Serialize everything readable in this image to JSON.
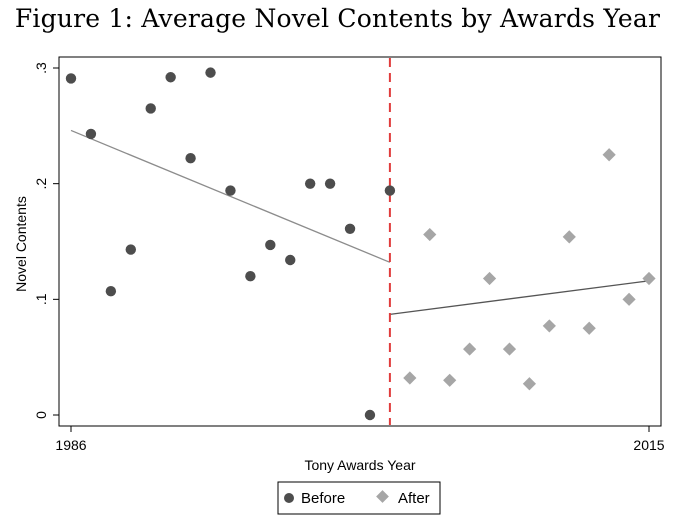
{
  "figure_title": "Figure 1: Average Novel Contents by Awards Year",
  "chart_data": {
    "type": "scatter",
    "title": "Figure 1: Average Novel Contents by Awards Year",
    "xlabel": "Tony Awards Year",
    "ylabel": "Novel Contents",
    "xlim": [
      1986,
      2015
    ],
    "ylim": [
      0,
      0.3
    ],
    "x_ticks": [
      1986,
      2015
    ],
    "x_tick_labels": [
      "1986",
      "2015"
    ],
    "y_ticks": [
      0,
      0.1,
      0.2,
      0.3
    ],
    "y_tick_labels": [
      "0",
      ".1",
      ".2",
      ".3"
    ],
    "cutoff_x": 2002,
    "grid": false,
    "legend_position": "bottom",
    "series": [
      {
        "name": "Before",
        "marker": "circle",
        "color": "#4d4d4d",
        "points": [
          [
            1986,
            0.291
          ],
          [
            1987,
            0.243
          ],
          [
            1988,
            0.107
          ],
          [
            1989,
            0.143
          ],
          [
            1990,
            0.265
          ],
          [
            1991,
            0.292
          ],
          [
            1992,
            0.222
          ],
          [
            1993,
            0.296
          ],
          [
            1994,
            0.194
          ],
          [
            1995,
            0.12
          ],
          [
            1996,
            0.147
          ],
          [
            1997,
            0.134
          ],
          [
            1998,
            0.2
          ],
          [
            1999,
            0.2
          ],
          [
            2000,
            0.161
          ],
          [
            2001,
            0.0
          ],
          [
            2002,
            0.194
          ]
        ],
        "fit_line": [
          [
            1986,
            0.246
          ],
          [
            2002,
            0.132
          ]
        ]
      },
      {
        "name": "After",
        "marker": "diamond",
        "color": "#a6a6a6",
        "points": [
          [
            2003,
            0.032
          ],
          [
            2004,
            0.156
          ],
          [
            2005,
            0.03
          ],
          [
            2006,
            0.057
          ],
          [
            2007,
            0.118
          ],
          [
            2008,
            0.057
          ],
          [
            2009,
            0.027
          ],
          [
            2010,
            0.077
          ],
          [
            2011,
            0.154
          ],
          [
            2012,
            0.075
          ],
          [
            2013,
            0.225
          ],
          [
            2014,
            0.1
          ],
          [
            2015,
            0.118
          ]
        ],
        "fit_line": [
          [
            2002,
            0.087
          ],
          [
            2015,
            0.116
          ]
        ]
      }
    ],
    "colors": {
      "before_fit": "#8c8c8c",
      "after_fit": "#555555",
      "cutoff_line": "#e03c3c"
    }
  }
}
